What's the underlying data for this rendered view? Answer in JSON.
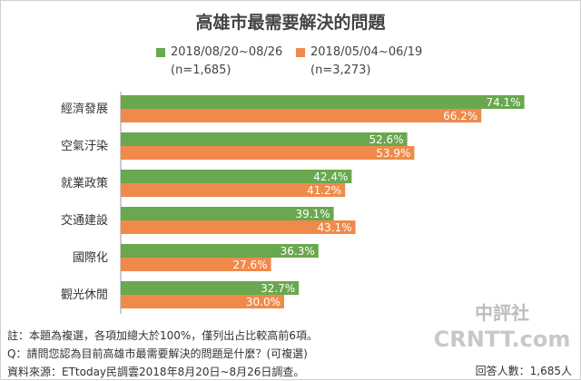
{
  "title": "高雄市最需要解決的問題",
  "legend": [
    {
      "label": "2018/08/20~08/26",
      "note": "(n=1,685)",
      "color": "#6aa84f"
    },
    {
      "label": "2018/05/04~06/19",
      "note": "(n=3,273)",
      "color": "#f08a4b"
    }
  ],
  "chart_data": {
    "type": "bar",
    "orientation": "horizontal",
    "categories": [
      "經濟發展",
      "空氣汙染",
      "就業政策",
      "交通建設",
      "國際化",
      "觀光休閒"
    ],
    "series": [
      {
        "name": "2018/08/20~08/26",
        "values": [
          74.1,
          52.6,
          42.4,
          39.1,
          36.3,
          32.7
        ],
        "color": "#6aa84f"
      },
      {
        "name": "2018/05/04~06/19",
        "values": [
          66.2,
          53.9,
          41.2,
          43.1,
          27.6,
          30.0
        ],
        "color": "#f08a4b"
      }
    ],
    "value_suffix": "%",
    "xlim": [
      0,
      80
    ],
    "grid": false
  },
  "notes": [
    "註：本題為複選，各項加總大於100%，僅列出占比較高前6項。",
    "Q：請問您認為目前高雄市最需要解決的問題是什麼？(可複選)",
    "資料來源：ETtoday民調雲2018年8月20日~8月26日調查。"
  ],
  "respondents": "回答人數：1,685人",
  "watermark": {
    "top": "中評社",
    "bottom": "CRNTT.com"
  }
}
